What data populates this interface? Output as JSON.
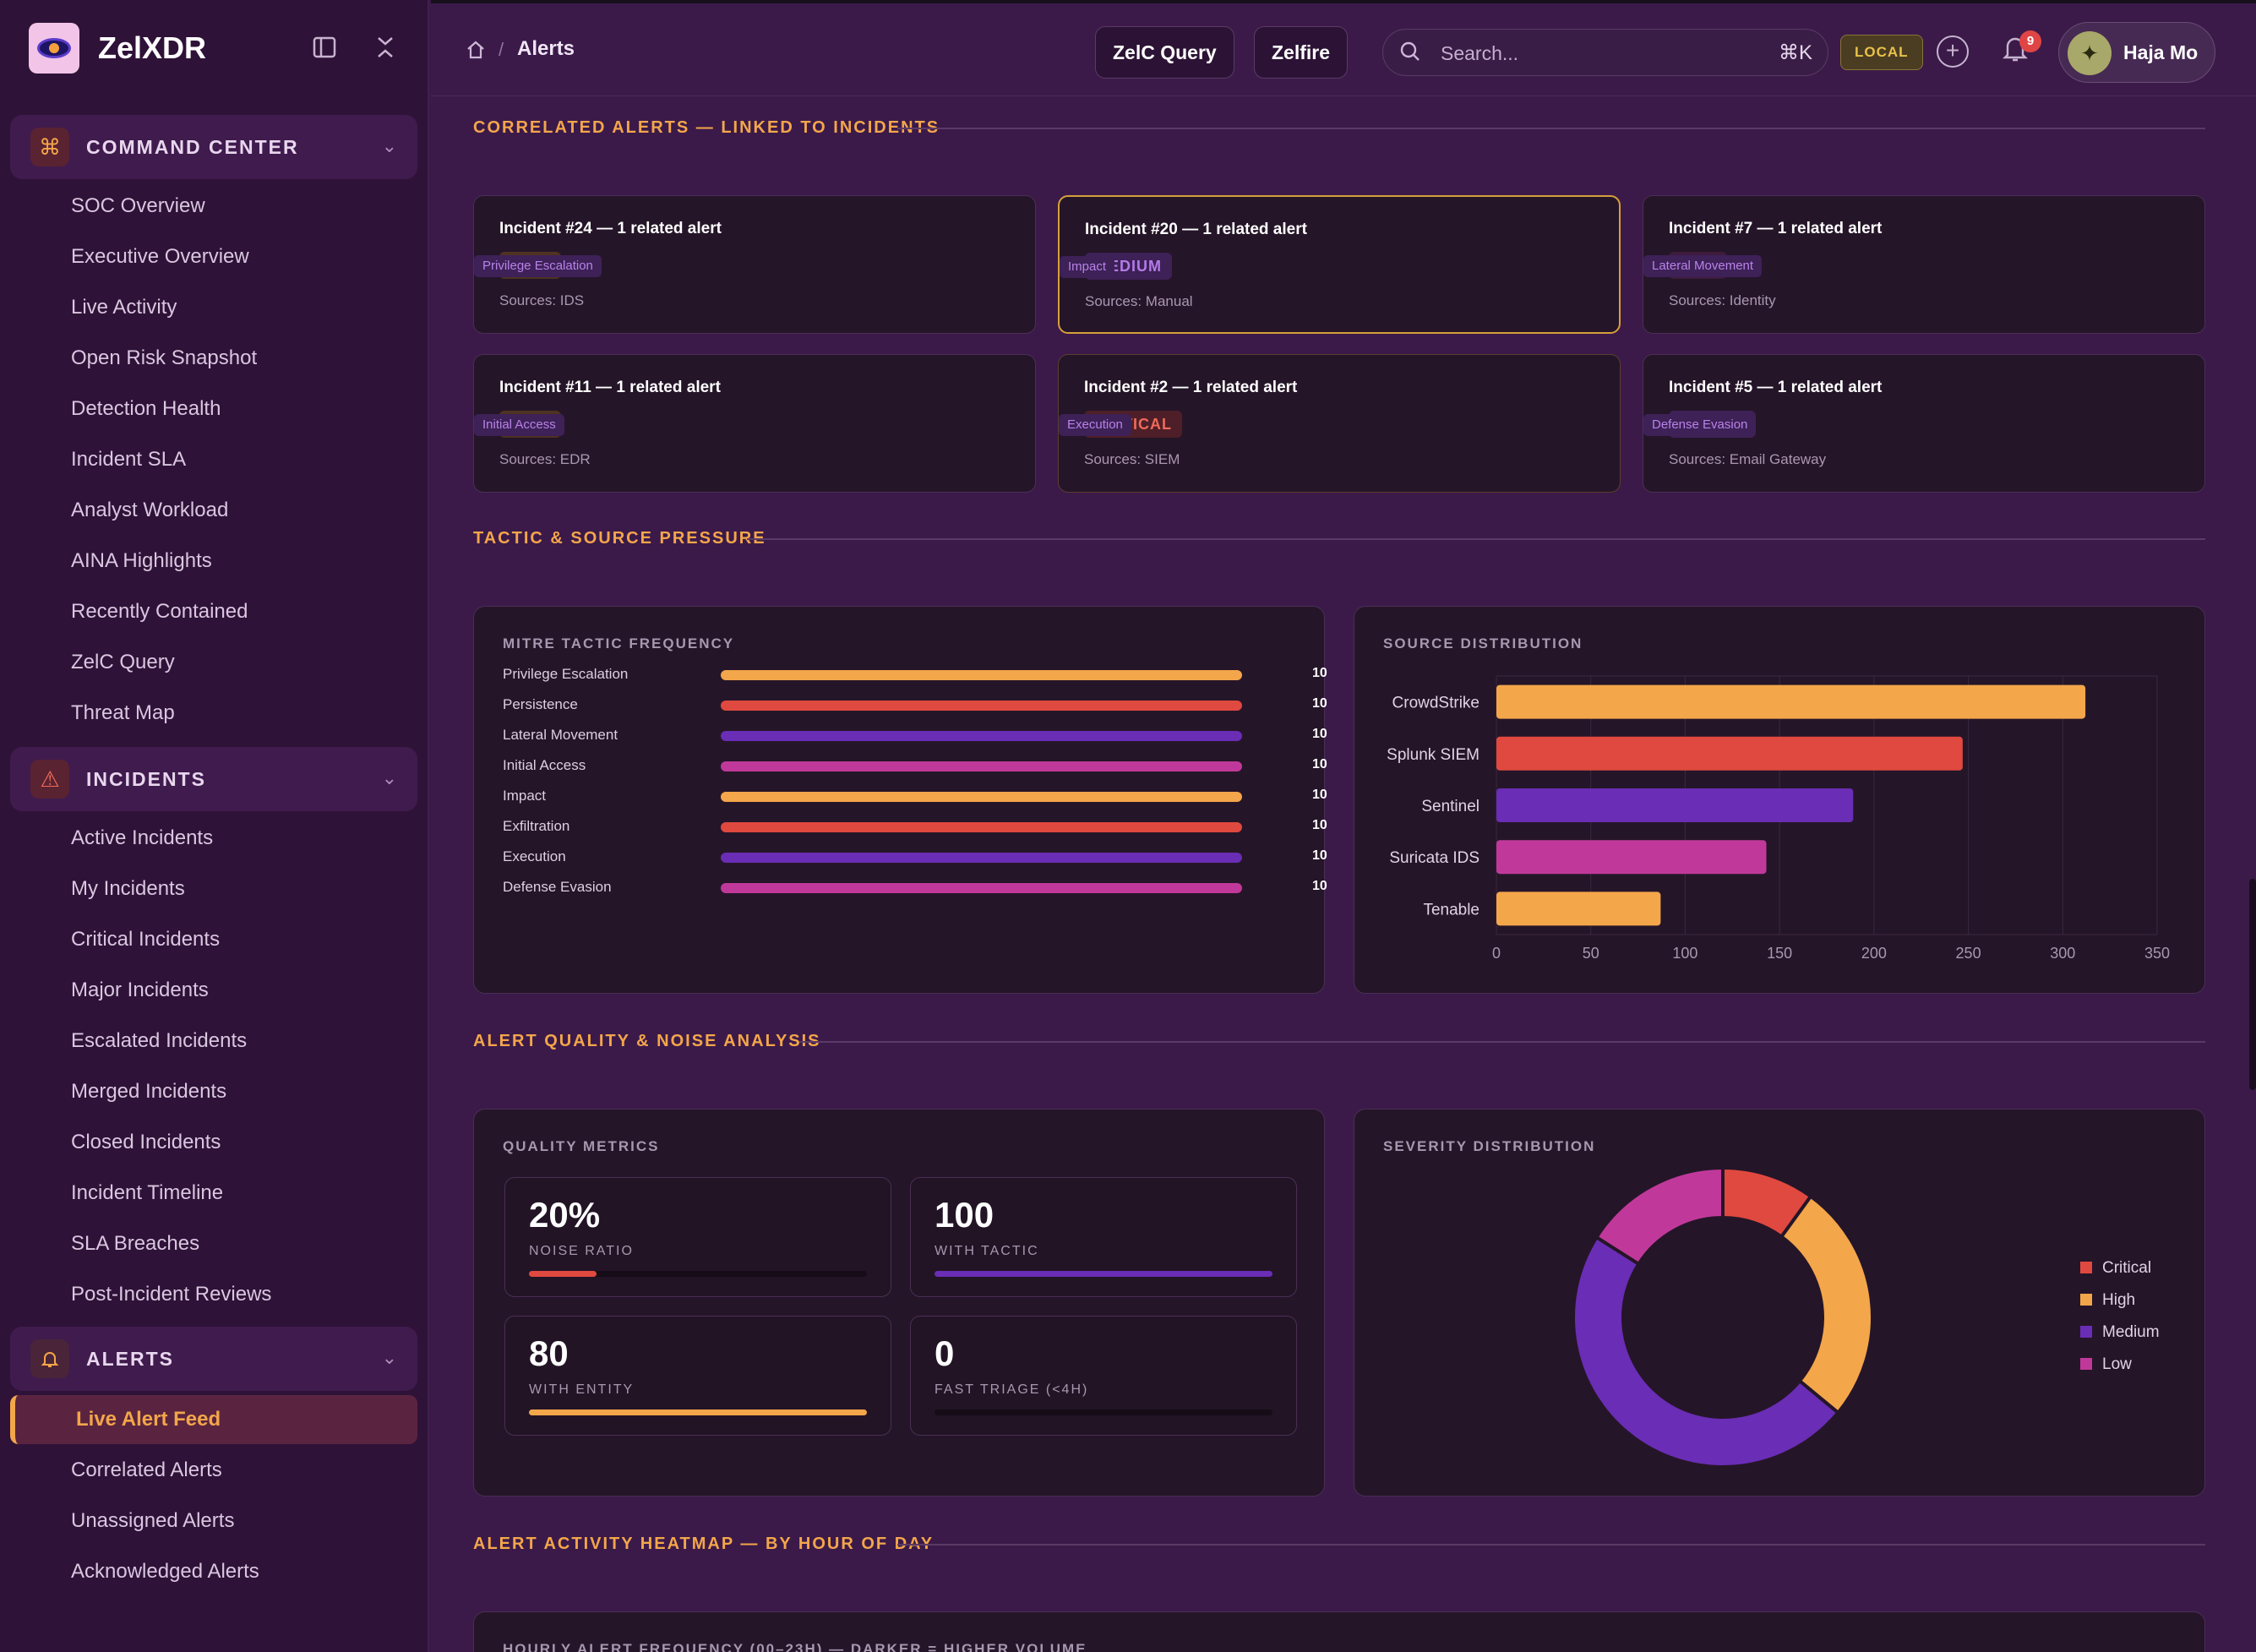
{
  "brand": {
    "name": "ZelXDR"
  },
  "sidebar": {
    "command_center": {
      "label": "COMMAND CENTER",
      "items": [
        "SOC Overview",
        "Executive Overview",
        "Live Activity",
        "Open Risk Snapshot",
        "Detection Health",
        "Incident SLA",
        "Analyst Workload",
        "AINA Highlights",
        "Recently Contained",
        "ZelC Query",
        "Threat Map"
      ]
    },
    "incidents": {
      "label": "INCIDENTS",
      "items": [
        "Active Incidents",
        "My Incidents",
        "Critical Incidents",
        "Major Incidents",
        "Escalated Incidents",
        "Merged Incidents",
        "Closed Incidents",
        "Incident Timeline",
        "SLA Breaches",
        "Post-Incident Reviews"
      ]
    },
    "alerts": {
      "label": "ALERTS",
      "items": [
        "Live Alert Feed",
        "Correlated Alerts",
        "Unassigned Alerts",
        "Acknowledged Alerts"
      ],
      "active": "Live Alert Feed"
    }
  },
  "topbar": {
    "breadcrumb": "Alerts",
    "zelc_query": "ZelC Query",
    "zelfire": "Zelfire",
    "search_placeholder": "Search...",
    "shortcut": "⌘K",
    "env": "LOCAL",
    "notifications": "9",
    "user": "Haja Mo"
  },
  "sections": {
    "correlated": "CORRELATED ALERTS — LINKED TO INCIDENTS",
    "tactic": "TACTIC & SOURCE PRESSURE",
    "quality": "ALERT QUALITY & NOISE ANALYSIS",
    "heatmap": "ALERT ACTIVITY HEATMAP — BY HOUR OF DAY",
    "heatmap_sub": "HOURLY ALERT FREQUENCY (00–23H) — DARKER = HIGHER VOLUME"
  },
  "incidents": [
    {
      "title": "Incident #24 — 1 related alert",
      "severity": "HIGH",
      "tactic": "Privilege Escalation",
      "sources": "Sources: IDS"
    },
    {
      "title": "Incident #20 — 1 related alert",
      "severity": "MEDIUM",
      "tactic": "Impact",
      "sources": "Sources: Manual"
    },
    {
      "title": "Incident #7 — 1 related alert",
      "severity": "LOW",
      "tactic": "Lateral Movement",
      "sources": "Sources: Identity"
    },
    {
      "title": "Incident #11 — 1 related alert",
      "severity": "HIGH",
      "tactic": "Initial Access",
      "sources": "Sources: EDR"
    },
    {
      "title": "Incident #2 — 1 related alert",
      "severity": "CRITICAL",
      "tactic": "Execution",
      "sources": "Sources: SIEM"
    },
    {
      "title": "Incident #5 — 1 related alert",
      "severity": "MEDIUM",
      "tactic": "Defense Evasion",
      "sources": "Sources: Email Gateway"
    }
  ],
  "severity_colors": {
    "CRITICAL": "#e0493f",
    "HIGH": "#f3a64a",
    "MEDIUM": "#6a2db5",
    "LOW": "#c0399a"
  },
  "mitre": {
    "title": "MITRE TACTIC FREQUENCY",
    "rows": [
      {
        "label": "Privilege Escalation",
        "value": 10,
        "color": "#f3a64a"
      },
      {
        "label": "Persistence",
        "value": 10,
        "color": "#e0493f"
      },
      {
        "label": "Lateral Movement",
        "value": 10,
        "color": "#6a2db5"
      },
      {
        "label": "Initial Access",
        "value": 10,
        "color": "#c0399a"
      },
      {
        "label": "Impact",
        "value": 10,
        "color": "#f3a64a"
      },
      {
        "label": "Exfiltration",
        "value": 10,
        "color": "#e0493f"
      },
      {
        "label": "Execution",
        "value": 10,
        "color": "#6a2db5"
      },
      {
        "label": "Defense Evasion",
        "value": 10,
        "color": "#c0399a"
      }
    ]
  },
  "chart_data": [
    {
      "type": "bar",
      "orientation": "horizontal",
      "title": "SOURCE DISTRIBUTION",
      "categories": [
        "CrowdStrike",
        "Splunk SIEM",
        "Sentinel",
        "Suricata IDS",
        "Tenable"
      ],
      "values": [
        312,
        247,
        189,
        143,
        87
      ],
      "colors": [
        "#f3a64a",
        "#e0493f",
        "#6a2db5",
        "#c0399a",
        "#f3a64a"
      ],
      "xlim": [
        0,
        350
      ],
      "ticks": [
        0,
        50,
        100,
        150,
        200,
        250,
        300,
        350
      ],
      "grid": true
    },
    {
      "type": "pie",
      "title": "SEVERITY DISTRIBUTION",
      "donut": true,
      "labels": [
        "Critical",
        "High",
        "Medium",
        "Low"
      ],
      "values": [
        10,
        26,
        48,
        16
      ],
      "colors": [
        "#e0493f",
        "#f3a64a",
        "#6a2db5",
        "#c0399a"
      ],
      "legend": "right"
    }
  ],
  "quality": {
    "title": "QUALITY METRICS",
    "metrics": [
      {
        "value": "20%",
        "label": "NOISE RATIO",
        "fill": 0.2,
        "color": "#e0493f"
      },
      {
        "value": "100",
        "label": "WITH TACTIC",
        "fill": 1.0,
        "color": "#6a2db5"
      },
      {
        "value": "80",
        "label": "WITH ENTITY",
        "fill": 1.0,
        "color": "#f3a64a"
      },
      {
        "value": "0",
        "label": "FAST TRIAGE (<4H)",
        "fill": 0,
        "color": "#f3a64a"
      }
    ]
  },
  "icons": {
    "logo": "eye-logo-icon",
    "panel": "panel-toggle-icon",
    "collapse": "collapse-icon",
    "home": "home-icon",
    "search": "search-icon",
    "plus": "plus-circle-icon",
    "bell": "bell-icon",
    "command": "command-icon",
    "warning": "warning-icon",
    "alert_bell": "bell-icon"
  }
}
